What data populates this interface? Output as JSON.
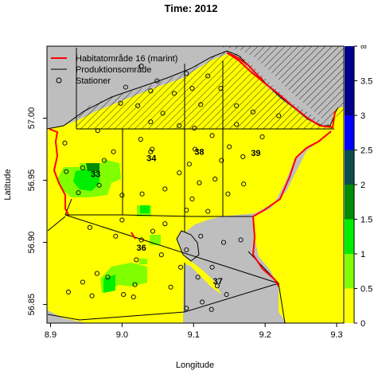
{
  "title": "Time: 2012",
  "axes": {
    "xlabel": "Longitude",
    "ylabel": "Latitude",
    "x_ticks": [
      "8.9",
      "9.0",
      "9.1",
      "9.2",
      "9.3"
    ],
    "y_ticks": [
      "56.85",
      "56.90",
      "56.95",
      "57.00"
    ],
    "xlim": [
      8.895,
      9.31
    ],
    "ylim": [
      56.835,
      57.058
    ]
  },
  "legend": {
    "placement": "top-left",
    "items": [
      {
        "label": "Habitatområde 16 (marint)",
        "symbol": "red-line",
        "color": "#ff0000"
      },
      {
        "label": "Produktionsområde",
        "symbol": "black-line",
        "color": "#000000"
      },
      {
        "label": "Stationer",
        "symbol": "circle",
        "color": "#000000"
      }
    ]
  },
  "colorbar": {
    "labels": [
      "0",
      "0.5",
      "1",
      "1.5",
      "2",
      "2.5",
      "3",
      "3.5",
      "∞"
    ],
    "bins": [
      {
        "from": 0,
        "to": 0.5,
        "color": "#ffff00"
      },
      {
        "from": 0.5,
        "to": 1,
        "color": "#7fff00"
      },
      {
        "from": 1,
        "to": 1.5,
        "color": "#00ee00"
      },
      {
        "from": 1.5,
        "to": 2,
        "color": "#008b00"
      },
      {
        "from": 2,
        "to": 2.5,
        "color": "#0b4d4d"
      },
      {
        "from": 2.5,
        "to": 3,
        "color": "#0000ff"
      },
      {
        "from": 3,
        "to": 4,
        "color": "#00008b"
      }
    ]
  },
  "areas": [
    {
      "label": "33",
      "lon": 8.963,
      "lat": 56.955
    },
    {
      "label": "34",
      "lon": 9.041,
      "lat": 56.968
    },
    {
      "label": "38",
      "lon": 9.108,
      "lat": 56.973
    },
    {
      "label": "39",
      "lon": 9.187,
      "lat": 56.972
    },
    {
      "label": "36",
      "lon": 9.027,
      "lat": 56.896
    },
    {
      "label": "37",
      "lon": 9.134,
      "lat": 56.869
    }
  ],
  "colors": {
    "land": "#bebebe",
    "sea_default": "#ffff00",
    "habitat_line": "#ff0000"
  },
  "chart_data": {
    "type": "map",
    "title": "Time: 2012",
    "xlabel": "Longitude",
    "ylabel": "Latitude",
    "xlim": [
      8.895,
      9.31
    ],
    "ylim": [
      56.835,
      57.058
    ],
    "stations": [
      [
        9.027,
        57.042
      ],
      [
        9.049,
        57.03
      ],
      [
        9.09,
        57.036
      ],
      [
        9.12,
        57.034
      ],
      [
        9.005,
        57.025
      ],
      [
        9.04,
        57.022
      ],
      [
        9.073,
        57.02
      ],
      [
        9.098,
        57.024
      ],
      [
        9.138,
        57.024
      ],
      [
        9.16,
        57.01
      ],
      [
        9.183,
        57.005
      ],
      [
        9.219,
        57.002
      ],
      [
        8.998,
        57.012
      ],
      [
        9.022,
        57.01
      ],
      [
        9.057,
        57.004
      ],
      [
        9.11,
        57.011
      ],
      [
        9.04,
        56.997
      ],
      [
        9.08,
        56.994
      ],
      [
        9.101,
        56.992
      ],
      [
        9.16,
        56.995
      ],
      [
        8.966,
        56.99
      ],
      [
        9.126,
        56.986
      ],
      [
        9.026,
        56.983
      ],
      [
        9.196,
        56.985
      ],
      [
        8.92,
        56.98
      ],
      [
        9.042,
        56.975
      ],
      [
        8.988,
        56.973
      ],
      [
        9.102,
        56.975
      ],
      [
        9.15,
        56.977
      ],
      [
        9.04,
        56.973
      ],
      [
        8.975,
        56.966
      ],
      [
        9.094,
        56.963
      ],
      [
        9.139,
        56.966
      ],
      [
        9.169,
        56.969
      ],
      [
        8.945,
        56.96
      ],
      [
        9.08,
        56.956
      ],
      [
        9.108,
        56.948
      ],
      [
        9.13,
        56.951
      ],
      [
        8.922,
        56.957
      ],
      [
        9.06,
        56.943
      ],
      [
        8.968,
        56.946
      ],
      [
        9.028,
        56.939
      ],
      [
        9.098,
        56.935
      ],
      [
        9.148,
        56.939
      ],
      [
        9.17,
        56.947
      ],
      [
        8.939,
        56.94
      ],
      [
        9.0,
        56.938
      ],
      [
        9.09,
        56.926
      ],
      [
        9.12,
        56.925
      ],
      [
        9.06,
        56.915
      ],
      [
        9.0,
        56.918
      ],
      [
        8.955,
        56.912
      ],
      [
        8.991,
        56.905
      ],
      [
        9.043,
        56.909
      ],
      [
        9.11,
        56.905
      ],
      [
        9.142,
        56.9
      ],
      [
        9.166,
        56.902
      ],
      [
        9.027,
        56.902
      ],
      [
        9.055,
        56.89
      ],
      [
        9.09,
        56.894
      ],
      [
        9.126,
        56.88
      ],
      [
        9.02,
        56.886
      ],
      [
        8.965,
        56.875
      ],
      [
        8.98,
        56.872
      ],
      [
        9.018,
        56.866
      ],
      [
        9.106,
        56.872
      ],
      [
        9.133,
        56.865
      ],
      [
        9.082,
        56.88
      ],
      [
        8.945,
        56.868
      ],
      [
        9.002,
        56.858
      ],
      [
        8.925,
        56.86
      ],
      [
        9.068,
        56.864
      ],
      [
        9.112,
        56.852
      ],
      [
        8.958,
        56.857
      ],
      [
        9.016,
        56.856
      ],
      [
        9.146,
        56.858
      ],
      [
        9.09,
        56.847
      ],
      [
        9.125,
        56.846
      ]
    ]
  }
}
